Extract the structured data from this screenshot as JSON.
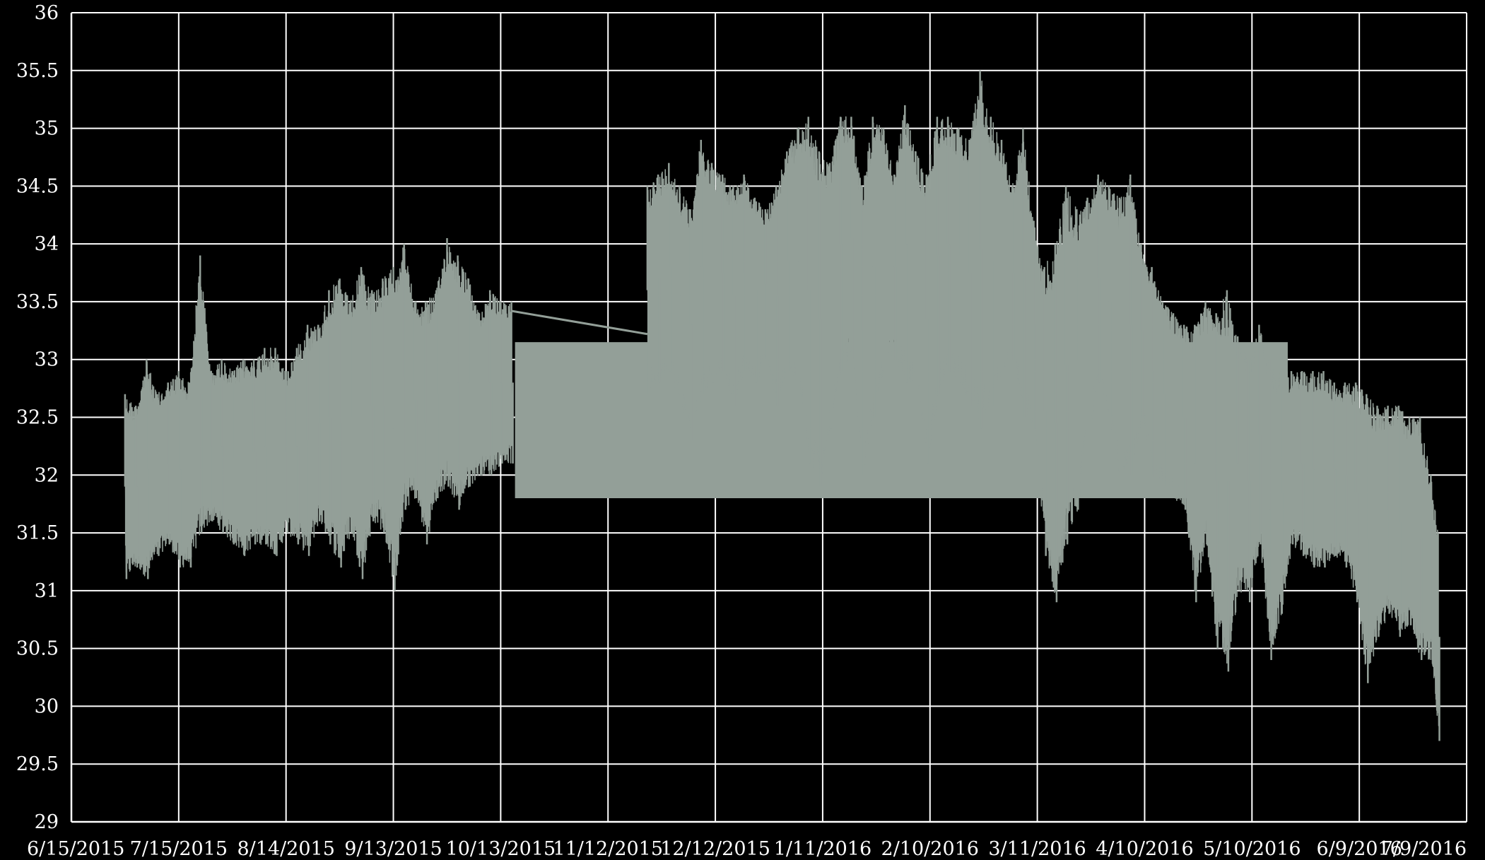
{
  "chart_data": {
    "type": "line",
    "title": "",
    "xlabel": "",
    "ylabel": "",
    "grid": true,
    "legend": "none",
    "background_color": "#000000",
    "grid_color": "#ffffff",
    "series_color": "#939f98",
    "xlim": [
      "2015-06-15",
      "2016-07-09"
    ],
    "ylim": [
      29,
      36
    ],
    "x_ticks": [
      {
        "date": "2015-06-15",
        "label": "6/15/2015"
      },
      {
        "date": "2015-07-15",
        "label": "7/15/2015"
      },
      {
        "date": "2015-08-14",
        "label": "8/14/2015"
      },
      {
        "date": "2015-09-13",
        "label": "9/13/2015"
      },
      {
        "date": "2015-10-13",
        "label": "10/13/2015"
      },
      {
        "date": "2015-11-12",
        "label": "11/12/2015"
      },
      {
        "date": "2015-12-12",
        "label": "12/12/2015"
      },
      {
        "date": "2016-01-11",
        "label": "1/11/2016"
      },
      {
        "date": "2016-02-10",
        "label": "2/10/2016"
      },
      {
        "date": "2016-03-11",
        "label": "3/11/2016"
      },
      {
        "date": "2016-04-10",
        "label": "4/10/2016"
      },
      {
        "date": "2016-05-10",
        "label": "5/10/2016"
      },
      {
        "date": "2016-06-09",
        "label": "6/9/2016"
      },
      {
        "date": "2016-07-09",
        "label": "7/9/2016"
      }
    ],
    "y_ticks": [
      {
        "value": 29,
        "label": "29"
      },
      {
        "value": 29.5,
        "label": "29.5"
      },
      {
        "value": 30,
        "label": "30"
      },
      {
        "value": 30.5,
        "label": "30.5"
      },
      {
        "value": 31,
        "label": "31"
      },
      {
        "value": 31.5,
        "label": "31.5"
      },
      {
        "value": 32,
        "label": "32"
      },
      {
        "value": 32.5,
        "label": "32.5"
      },
      {
        "value": 33,
        "label": "33"
      },
      {
        "value": 33.5,
        "label": "33.5"
      },
      {
        "value": 34,
        "label": "34"
      },
      {
        "value": 34.5,
        "label": "34.5"
      },
      {
        "value": 35,
        "label": "35"
      },
      {
        "value": 35.5,
        "label": "35.5"
      },
      {
        "value": 36,
        "label": "36"
      }
    ],
    "band": {
      "x": [
        "2015-10-17",
        "2016-05-20"
      ],
      "y": [
        31.8,
        33.15
      ]
    },
    "series": [
      {
        "segments": [
          {
            "x": [
              "2015-06-30",
              "2015-07-03",
              "2015-07-06",
              "2015-07-09",
              "2015-07-12",
              "2015-07-15",
              "2015-07-18",
              "2015-07-21",
              "2015-07-24",
              "2015-07-27",
              "2015-07-30",
              "2015-08-02",
              "2015-08-05",
              "2015-08-08",
              "2015-08-11",
              "2015-08-14",
              "2015-08-17",
              "2015-08-20",
              "2015-08-23",
              "2015-08-26",
              "2015-08-29",
              "2015-09-01",
              "2015-09-04",
              "2015-09-07",
              "2015-09-10",
              "2015-09-13",
              "2015-09-16",
              "2015-09-19",
              "2015-09-22",
              "2015-09-25",
              "2015-09-28",
              "2015-10-01",
              "2015-10-04",
              "2015-10-07",
              "2015-10-10",
              "2015-10-13",
              "2015-10-16"
            ],
            "min": [
              31.1,
              31.2,
              31.1,
              31.3,
              31.4,
              31.2,
              31.2,
              31.5,
              31.6,
              31.5,
              31.4,
              31.3,
              31.4,
              31.4,
              31.3,
              31.5,
              31.4,
              31.3,
              31.6,
              31.4,
              31.2,
              31.5,
              31.1,
              31.6,
              31.5,
              31.0,
              31.7,
              31.8,
              31.4,
              31.8,
              31.9,
              31.7,
              31.9,
              32.0,
              32.0,
              32.1,
              32.1
            ],
            "max": [
              32.7,
              32.6,
              33.0,
              32.7,
              32.8,
              32.9,
              32.8,
              33.9,
              32.9,
              33.0,
              32.9,
              33.0,
              33.0,
              33.1,
              33.1,
              32.9,
              33.1,
              33.3,
              33.3,
              33.6,
              33.7,
              33.5,
              33.8,
              33.6,
              33.7,
              33.8,
              34.0,
              33.5,
              33.5,
              33.6,
              34.05,
              33.9,
              33.7,
              33.4,
              33.6,
              33.5,
              33.5
            ]
          },
          {
            "x": [
              "2015-11-23",
              "2015-11-26",
              "2015-11-29",
              "2015-12-02",
              "2015-12-05",
              "2015-12-08",
              "2015-12-11",
              "2015-12-14",
              "2015-12-17",
              "2015-12-20",
              "2015-12-23",
              "2015-12-26",
              "2015-12-29",
              "2016-01-01",
              "2016-01-04",
              "2016-01-07",
              "2016-01-10",
              "2016-01-13",
              "2016-01-16",
              "2016-01-19",
              "2016-01-22",
              "2016-01-25",
              "2016-01-28",
              "2016-01-31",
              "2016-02-03",
              "2016-02-06",
              "2016-02-09",
              "2016-02-12",
              "2016-02-15",
              "2016-02-18",
              "2016-02-21",
              "2016-02-24",
              "2016-02-27",
              "2016-03-01",
              "2016-03-04",
              "2016-03-07",
              "2016-03-10",
              "2016-03-13",
              "2016-03-16",
              "2016-03-19",
              "2016-03-22",
              "2016-03-25",
              "2016-03-28",
              "2016-03-31",
              "2016-04-03",
              "2016-04-06",
              "2016-04-09",
              "2016-04-12",
              "2016-04-15",
              "2016-04-18",
              "2016-04-21",
              "2016-04-24",
              "2016-04-27",
              "2016-04-30",
              "2016-05-03",
              "2016-05-06",
              "2016-05-09",
              "2016-05-12",
              "2016-05-15",
              "2016-05-18",
              "2016-05-21",
              "2016-05-24",
              "2016-05-27",
              "2016-05-30",
              "2016-06-02",
              "2016-06-05",
              "2016-06-08",
              "2016-06-11",
              "2016-06-14",
              "2016-06-17",
              "2016-06-20",
              "2016-06-23",
              "2016-06-26",
              "2016-06-29",
              "2016-07-01"
            ],
            "min": [
              32.7,
              32.8,
              32.9,
              32.6,
              32.3,
              32.7,
              32.8,
              32.9,
              32.6,
              32.9,
              32.8,
              33.0,
              32.6,
              32.9,
              32.7,
              32.1,
              31.9,
              32.4,
              32.9,
              33.0,
              32.0,
              32.5,
              32.9,
              33.0,
              32.8,
              32.7,
              32.1,
              32.7,
              32.9,
              32.8,
              32.6,
              32.4,
              32.6,
              32.9,
              33.0,
              32.5,
              32.4,
              31.3,
              30.9,
              31.4,
              31.7,
              32.3,
              32.8,
              32.5,
              31.9,
              32.0,
              32.5,
              32.0,
              31.9,
              31.8,
              31.7,
              30.9,
              31.4,
              30.5,
              30.3,
              31.0,
              30.9,
              31.4,
              30.4,
              30.8,
              31.4,
              31.3,
              31.2,
              31.2,
              31.3,
              31.2,
              30.9,
              30.2,
              30.6,
              30.8,
              30.6,
              30.7,
              30.4,
              30.4,
              29.7
            ],
            "max": [
              34.5,
              34.6,
              34.7,
              34.5,
              34.3,
              34.9,
              34.7,
              34.6,
              34.5,
              34.6,
              34.4,
              34.3,
              34.5,
              34.8,
              35.0,
              35.1,
              34.8,
              34.7,
              35.1,
              35.1,
              34.5,
              35.1,
              35.0,
              34.6,
              35.2,
              34.8,
              34.6,
              35.1,
              35.1,
              35.0,
              34.9,
              35.5,
              35.1,
              34.9,
              34.5,
              35.0,
              34.2,
              33.8,
              34.0,
              34.5,
              34.3,
              34.4,
              34.6,
              34.5,
              34.4,
              34.6,
              34.0,
              33.8,
              33.5,
              33.4,
              33.3,
              33.3,
              33.5,
              33.4,
              33.6,
              33.2,
              33.0,
              33.3,
              33.0,
              32.9,
              32.9,
              32.9,
              32.9,
              32.9,
              32.8,
              32.8,
              32.8,
              32.7,
              32.6,
              32.6,
              32.6,
              32.5,
              32.5,
              32.0,
              31.5
            ]
          }
        ],
        "bridge": {
          "x": [
            "2015-10-16",
            "2015-11-23"
          ],
          "y": [
            33.42,
            33.22
          ]
        }
      }
    ]
  }
}
